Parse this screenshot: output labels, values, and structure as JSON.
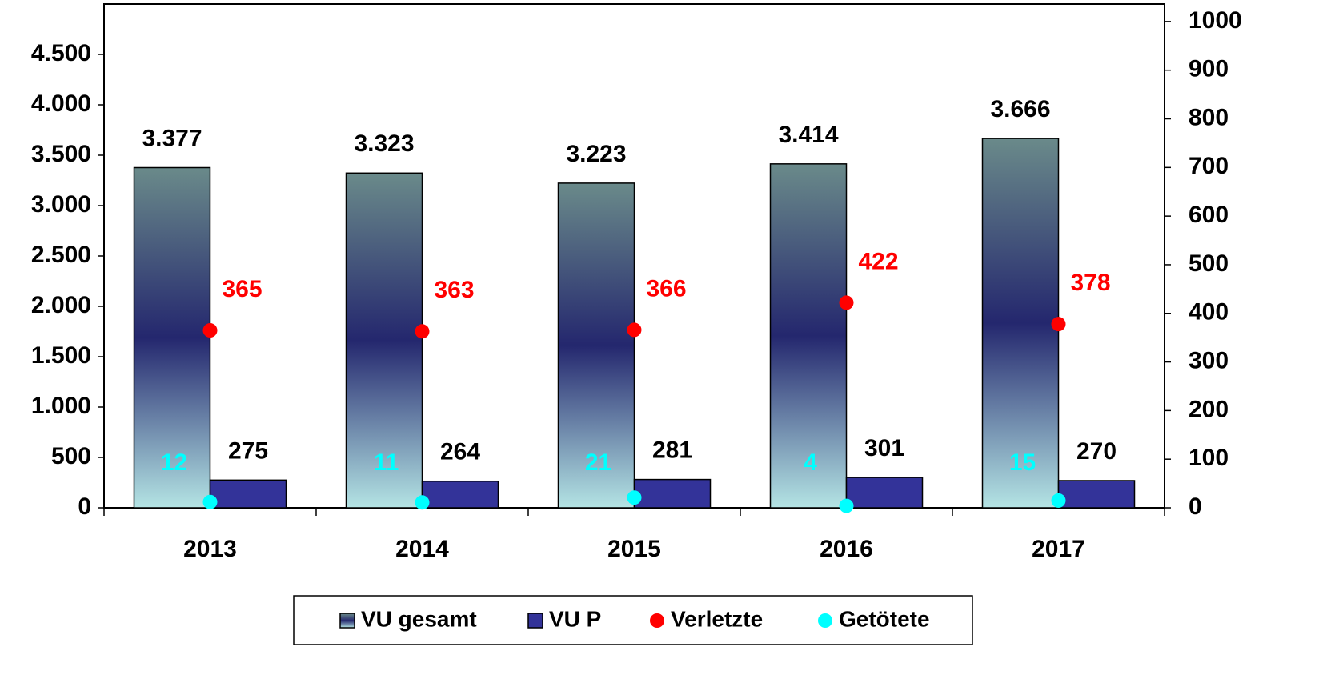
{
  "chart_data": {
    "type": "bar",
    "categories": [
      "2013",
      "2014",
      "2015",
      "2016",
      "2017"
    ],
    "series": [
      {
        "name": "VU gesamt",
        "type": "bar",
        "gradient": [
          "#6a8a8a",
          "#24276e",
          "#b4e4e4"
        ],
        "values": [
          3377,
          3323,
          3223,
          3414,
          3666
        ],
        "value_labels": [
          "3.377",
          "3.323",
          "3.223",
          "3.414",
          "3.666"
        ]
      },
      {
        "name": "VU P",
        "type": "bar",
        "color": "#333399",
        "values": [
          275,
          264,
          281,
          301,
          270
        ]
      },
      {
        "name": "Verletzte",
        "type": "scatter",
        "axis": "y2",
        "color": "#ff0000",
        "values": [
          365,
          363,
          366,
          422,
          378
        ]
      },
      {
        "name": "Getötete",
        "type": "scatter",
        "axis": "y2",
        "color": "#00ffff",
        "values": [
          12,
          11,
          21,
          4,
          15
        ]
      }
    ],
    "ylim": [
      0,
      5000
    ],
    "yticks": [
      0,
      500,
      {
        "value": 1000,
        "label": "1.000"
      },
      {
        "value": 1500,
        "label": "1.500"
      },
      {
        "value": 2000,
        "label": "2.000"
      },
      {
        "value": 2500,
        "label": "2.500"
      },
      {
        "value": 3000,
        "label": "3.000"
      },
      {
        "value": 3500,
        "label": "3.500"
      },
      {
        "value": 4000,
        "label": "4.000"
      },
      {
        "value": 4500,
        "label": "4.500"
      }
    ],
    "y2lim": [
      0,
      1036
    ],
    "y2ticks": [
      0,
      100,
      200,
      300,
      400,
      500,
      600,
      700,
      800,
      900,
      1000
    ],
    "legend": "bottom"
  }
}
